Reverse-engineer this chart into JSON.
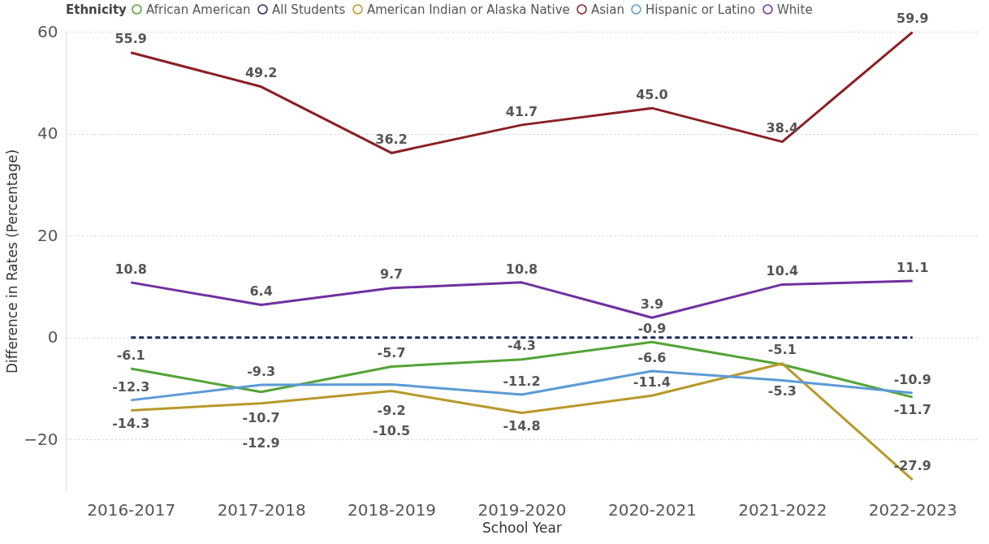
{
  "chart_data": {
    "type": "line",
    "xlabel": "School Year",
    "ylabel": "Difference in Rates (Percentage)",
    "legend_title": "Ethnicity",
    "categories": [
      "2016-2017",
      "2017-2018",
      "2018-2019",
      "2019-2020",
      "2020-2021",
      "2021-2022",
      "2022-2023"
    ],
    "series": [
      {
        "name": "African American",
        "color": "#53a436",
        "values": [
          -6.1,
          -10.7,
          -5.7,
          -4.3,
          -0.9,
          -5.3,
          -11.7
        ],
        "value_labels": [
          "-6.1",
          "-10.7",
          "-5.7",
          "-4.3",
          "-0.9",
          "-5.3",
          "-11.7"
        ]
      },
      {
        "name": "All Students",
        "color": "#1f2a5c",
        "values": [
          0,
          0,
          0,
          0,
          0,
          0,
          0
        ],
        "line_style": "dashed"
      },
      {
        "name": "American Indian or Alaska Native",
        "color": "#b8992a",
        "values": [
          -14.3,
          -12.9,
          -10.5,
          -14.8,
          -11.4,
          -5.1,
          -27.9
        ],
        "value_labels": [
          "-14.3",
          "-12.9",
          "-10.5",
          "-14.8",
          "-11.4",
          "-5.1",
          "-27.9"
        ]
      },
      {
        "name": "Asian",
        "color": "#8b1f24",
        "values": [
          55.9,
          49.2,
          36.2,
          41.7,
          45.0,
          38.4,
          59.9
        ],
        "value_labels": [
          "55.9",
          "49.2",
          "36.2",
          "41.7",
          "45.0",
          "38.4",
          "59.9"
        ]
      },
      {
        "name": "Hispanic or Latino",
        "color": "#5b9bd5",
        "values": [
          -12.3,
          -9.3,
          -9.2,
          -11.2,
          -6.6,
          -8.4,
          -10.9
        ],
        "value_labels": [
          "-12.3",
          "-9.3",
          "-9.2",
          "-11.2",
          "-6.6",
          null,
          "-10.9"
        ]
      },
      {
        "name": "White",
        "color": "#7030a0",
        "values": [
          10.8,
          6.4,
          9.7,
          10.8,
          3.9,
          10.4,
          11.1
        ],
        "value_labels": [
          "10.8",
          "6.4",
          "9.7",
          "10.8",
          "3.9",
          "10.4",
          "11.1"
        ]
      }
    ],
    "ylim": [
      -30,
      60
    ],
    "yticks": [
      -20,
      0,
      20,
      40,
      60
    ],
    "grid": "y",
    "legend": "top left",
    "line_style": "solid",
    "marker": "none"
  }
}
